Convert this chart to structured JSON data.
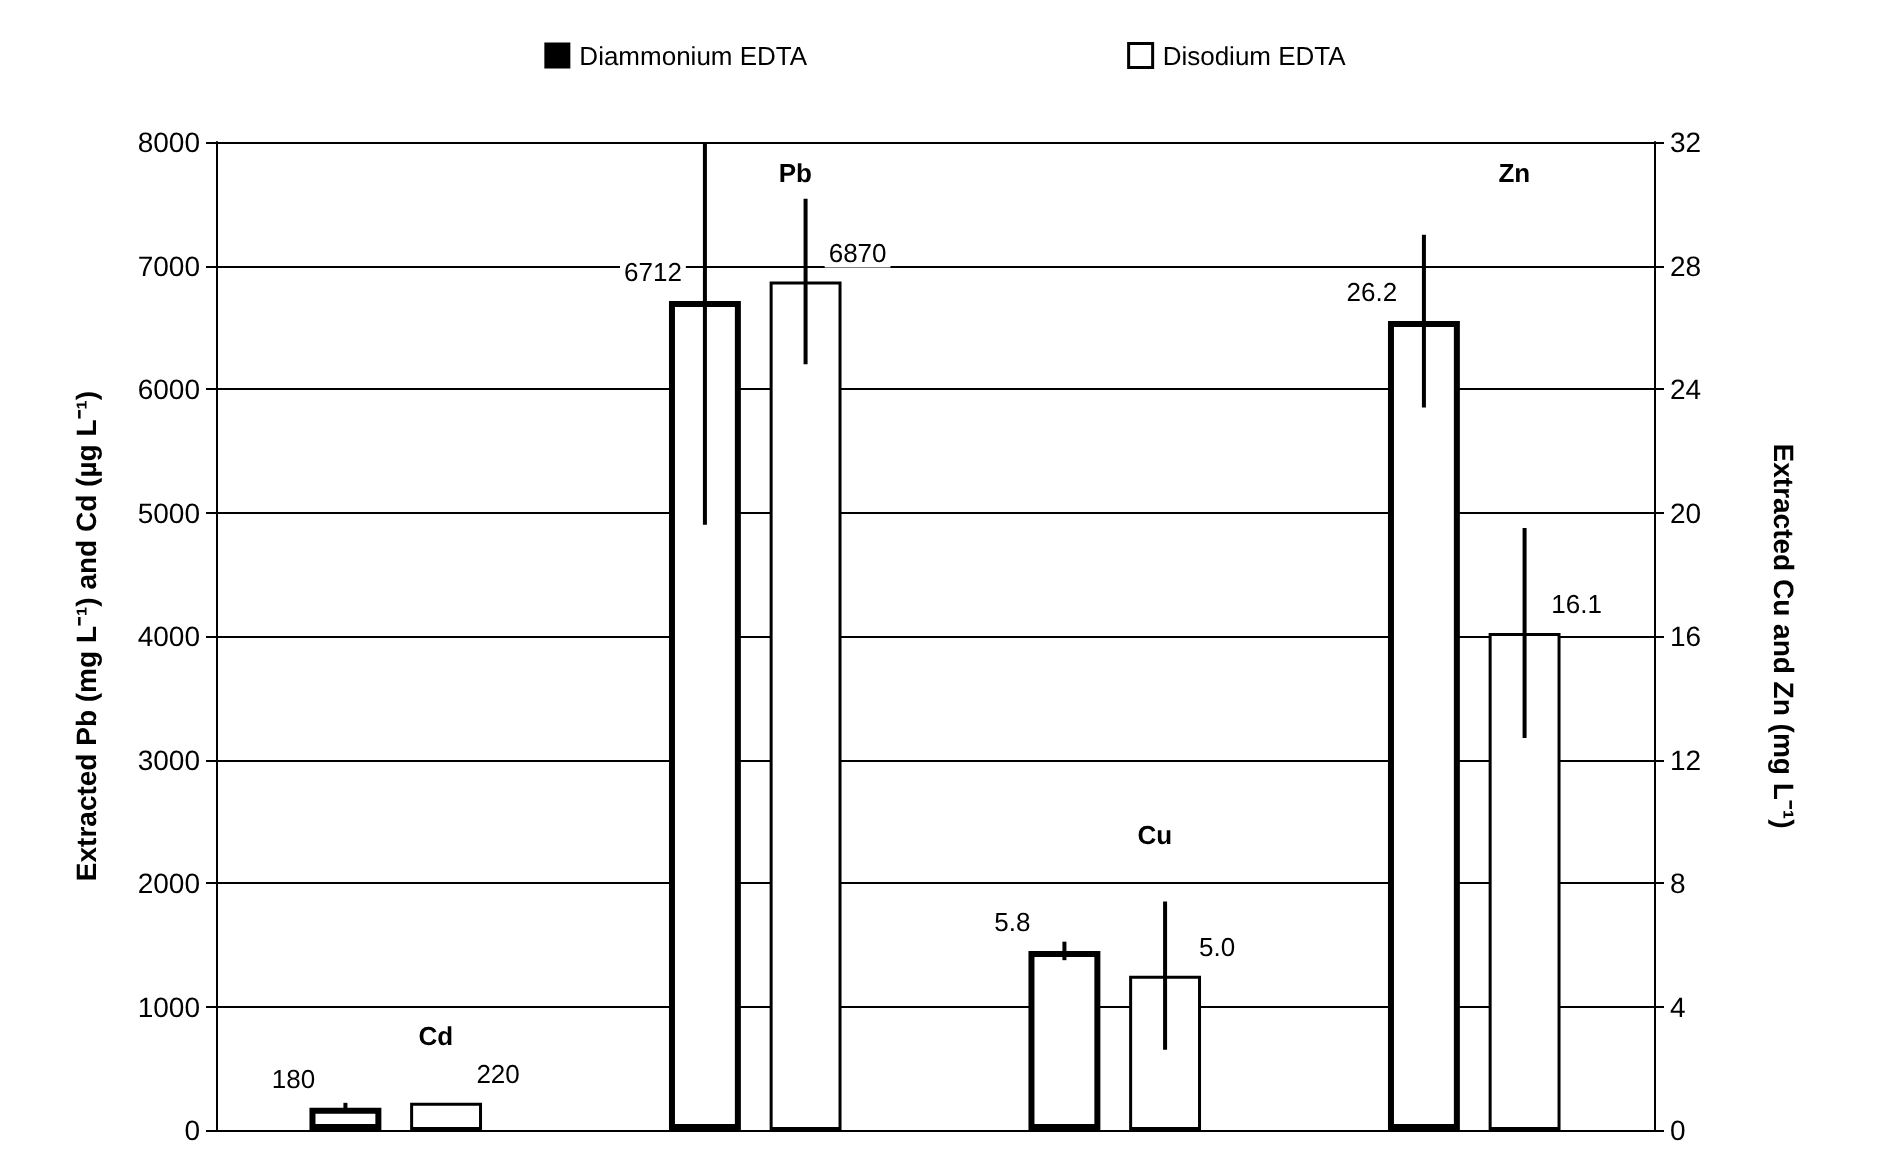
{
  "chart_data": {
    "type": "bar",
    "categories": [
      "Cd",
      "Pb",
      "Cu",
      "Zn"
    ],
    "ylabel": "Extracted Pb (mg L⁻¹) and Cd (µg L⁻¹)",
    "y2label": "Extracted Cu and Zn (mg L⁻¹)",
    "ylim": [
      0,
      8000
    ],
    "yticks": [
      0,
      1000,
      2000,
      3000,
      4000,
      5000,
      6000,
      7000,
      8000
    ],
    "y2lim": [
      0,
      32
    ],
    "y2ticks": [
      0,
      4,
      8,
      12,
      16,
      20,
      24,
      28,
      32
    ],
    "series": [
      {
        "name": "Diammonium EDTA",
        "color": "#000000",
        "values": [
          180,
          6712,
          null,
          null
        ],
        "errors": [
          40,
          [
            4900,
            8000
          ],
          null,
          null
        ],
        "value_labels": [
          "180",
          "6712",
          null,
          null
        ]
      },
      {
        "name": "Disodium EDTA",
        "color": "#000000",
        "values": [
          220,
          6870,
          null,
          null
        ],
        "errors": [
          null,
          670,
          null,
          null
        ],
        "value_labels": [
          "220",
          "6870",
          null,
          null
        ]
      },
      {
        "color": "#000000",
        "axis": "y2",
        "values": [
          null,
          null,
          5.8,
          26.2
        ],
        "errors": [
          null,
          null,
          0.3,
          2.8
        ],
        "value_labels": [
          null,
          null,
          "5.8",
          "26.2"
        ]
      },
      {
        "color": "#000000",
        "axis": "y2",
        "values": [
          null,
          null,
          5.0,
          16.1
        ],
        "errors": [
          null,
          null,
          2.4,
          3.4
        ],
        "value_labels": [
          null,
          null,
          "5.0",
          "16.1"
        ]
      }
    ],
    "grid": "y",
    "legend": "top",
    "tick_labels": "y"
  }
}
